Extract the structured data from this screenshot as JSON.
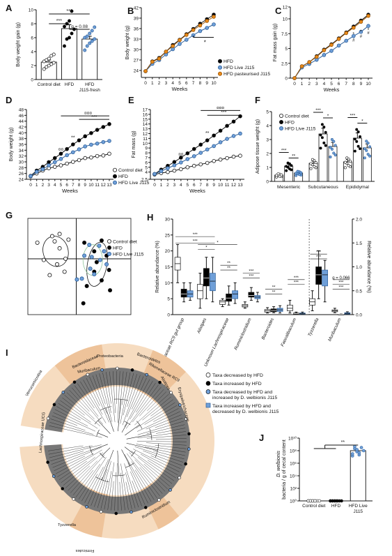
{
  "colors": {
    "control": "#ffffff",
    "hfd": "#000000",
    "live": "#6f9fd8",
    "past": "#e88a1a",
    "wedge": "#f6dcc0",
    "wedgeDark": "#eec39a",
    "grey": "#555555"
  },
  "panels": {
    "A": "A",
    "B": "B",
    "C": "C",
    "D": "D",
    "E": "E",
    "F": "F",
    "G": "G",
    "H": "H",
    "I": "I",
    "J": "J"
  },
  "chart_data": [
    {
      "panel": "A",
      "type": "bar",
      "ylabel": "Body weight gain (g)",
      "ylim": [
        0,
        10
      ],
      "yticks": [
        0,
        2,
        4,
        6,
        8,
        10
      ],
      "categories": [
        "Control diet",
        "HFD",
        "HFD J115-fresh"
      ],
      "values": [
        2.5,
        7.3,
        5.8
      ],
      "errors": [
        0.3,
        0.55,
        0.4
      ],
      "points": [
        [
          1.5,
          1.8,
          2.0,
          2.2,
          2.4,
          2.6,
          2.8,
          3.0,
          3.4,
          3.6
        ],
        [
          4.8,
          5.8,
          6.0,
          6.6,
          7.2,
          7.6,
          8.0,
          8.4,
          9.8
        ],
        [
          4.2,
          4.8,
          5.2,
          5.5,
          5.8,
          6.0,
          6.2,
          6.6,
          7.0,
          7.5
        ]
      ],
      "annotations": [
        {
          "text": "***",
          "pair": [
            0,
            2
          ]
        },
        {
          "text": "***",
          "pair": [
            0,
            1
          ]
        },
        {
          "text": "q = 0.08",
          "pair": [
            1,
            2
          ]
        }
      ]
    },
    {
      "panel": "B",
      "type": "line",
      "ylabel": "Body weight (g)",
      "xlabel": "Weeks",
      "ylim": [
        22,
        42
      ],
      "yticks": [
        24,
        27,
        30,
        33,
        36,
        39,
        42
      ],
      "x": [
        0,
        1,
        2,
        3,
        4,
        5,
        6,
        7,
        8,
        9,
        10
      ],
      "series": [
        {
          "name": "HFD",
          "values": [
            23.8,
            26.6,
            27.6,
            29.4,
            31.3,
            32.8,
            34.4,
            35.9,
            37.4,
            38.7,
            40.0
          ]
        },
        {
          "name": "HFD Live J115",
          "values": [
            23.8,
            25.9,
            27.0,
            28.6,
            30.1,
            31.6,
            32.8,
            34.1,
            35.3,
            36.2,
            37.2
          ]
        },
        {
          "name": "HFD pasteurised J115",
          "values": [
            23.8,
            26.5,
            27.4,
            29.4,
            31.0,
            32.7,
            34.2,
            35.6,
            36.9,
            38.2,
            39.4
          ]
        }
      ],
      "annotations": [
        "*"
      ]
    },
    {
      "panel": "C",
      "type": "line",
      "ylabel": "Fat mass gain (g)",
      "xlabel": "Weeks",
      "ylim": [
        0,
        12
      ],
      "yticks": [
        0,
        2.5,
        5,
        7.5,
        10,
        12
      ],
      "x": [
        0,
        1,
        2,
        3,
        4,
        5,
        6,
        7,
        8,
        9,
        10
      ],
      "series": [
        {
          "name": "HFD",
          "values": [
            0,
            2.0,
            2.7,
            3.7,
            4.8,
            5.7,
            6.7,
            7.7,
            8.7,
            9.7,
            10.7
          ]
        },
        {
          "name": "HFD Live J115",
          "values": [
            0,
            1.8,
            2.4,
            3.1,
            3.9,
            4.6,
            5.5,
            6.3,
            7.1,
            7.8,
            8.8
          ]
        },
        {
          "name": "HFD pasteurised J115",
          "values": [
            0,
            2.0,
            2.7,
            3.6,
            4.7,
            5.6,
            6.6,
            7.6,
            8.5,
            9.5,
            10.5
          ]
        }
      ],
      "annotations": [
        "*",
        "#",
        "*",
        "#",
        "*",
        "#"
      ]
    },
    {
      "panel": "D",
      "type": "line",
      "ylabel": "Body weight (g)",
      "xlabel": "Weeks",
      "ylim": [
        24,
        48
      ],
      "yticks": [
        24,
        26,
        28,
        30,
        32,
        34,
        36,
        38,
        40,
        42,
        44,
        46,
        48
      ],
      "x": [
        0,
        1,
        2,
        3,
        4,
        5,
        6,
        7,
        8,
        9,
        10,
        11,
        12,
        13
      ],
      "series": [
        {
          "name": "Control diet",
          "values": [
            25.0,
            26.0,
            27.0,
            27.8,
            28.3,
            28.8,
            29.4,
            30.0,
            30.6,
            31.3,
            31.5,
            32.0,
            32.2,
            32.8
          ]
        },
        {
          "name": "HFD",
          "values": [
            25.2,
            27.0,
            28.3,
            29.9,
            31.3,
            32.8,
            34.4,
            36.0,
            37.4,
            38.8,
            39.9,
            41.0,
            42.0,
            43.0
          ]
        },
        {
          "name": "HFD Live J115",
          "values": [
            25.1,
            26.6,
            27.5,
            28.8,
            29.9,
            31.0,
            32.3,
            33.3,
            34.3,
            35.3,
            35.9,
            36.3,
            36.8,
            37.2
          ]
        }
      ],
      "annotations": [
        "¤¤",
        "**",
        "***",
        "¤¤¤"
      ]
    },
    {
      "panel": "E",
      "type": "line",
      "ylabel": "Fat mass (g)",
      "xlabel": "Weeks",
      "ylim": [
        2.5,
        17
      ],
      "yticks": [
        2.5,
        4,
        5,
        6,
        7,
        8,
        9,
        10,
        11,
        12,
        13,
        14,
        15,
        16,
        17
      ],
      "x": [
        0,
        1,
        2,
        3,
        4,
        5,
        6,
        7,
        8,
        9,
        10,
        11,
        12,
        13
      ],
      "series": [
        {
          "name": "Control diet",
          "values": [
            3.5,
            3.8,
            4.0,
            4.3,
            4.6,
            5.0,
            5.3,
            5.6,
            5.9,
            6.3,
            6.6,
            6.9,
            7.2,
            7.4
          ]
        },
        {
          "name": "HFD",
          "values": [
            3.6,
            4.5,
            5.3,
            6.1,
            7.0,
            7.9,
            8.8,
            9.7,
            10.6,
            11.6,
            12.6,
            13.6,
            14.5,
            15.6
          ]
        },
        {
          "name": "HFD Live J115",
          "values": [
            3.6,
            4.2,
            4.8,
            5.4,
            6.0,
            6.7,
            7.3,
            8.0,
            8.7,
            9.4,
            10.2,
            10.9,
            11.5,
            12.0
          ]
        }
      ],
      "annotations": [
        "¤¤",
        "**",
        "***",
        "¤¤¤"
      ]
    },
    {
      "panel": "F",
      "type": "bar",
      "ylabel": "Adipose tissue weight (g)",
      "ylim": [
        0,
        5
      ],
      "yticks": [
        0,
        1,
        2,
        3,
        4,
        5
      ],
      "categories": [
        "Mesenteric",
        "Subcutaneous",
        "Epididymal"
      ],
      "series": [
        {
          "name": "Control diet",
          "values": [
            0.45,
            1.3,
            1.4
          ]
        },
        {
          "name": "HFD",
          "values": [
            1.1,
            3.4,
            3.1
          ]
        },
        {
          "name": "HFD Live J115",
          "values": [
            0.6,
            2.5,
            2.4
          ]
        }
      ],
      "annotations": [
        "***",
        "**",
        "***",
        "***",
        "*",
        "***",
        "***",
        "*"
      ]
    },
    {
      "panel": "G",
      "type": "scatter",
      "legend": [
        "Control diet",
        "HFD",
        "HFD Live J115"
      ],
      "series": [
        {
          "name": "Control diet",
          "points": [
            [
              -0.85,
              0.55
            ],
            [
              -0.55,
              0.7
            ],
            [
              -0.4,
              0.75
            ],
            [
              -0.5,
              0.58
            ],
            [
              -0.4,
              0.42
            ],
            [
              -0.72,
              0.15
            ],
            [
              -0.45,
              0.05
            ],
            [
              -0.28,
              0.18
            ],
            [
              -0.3,
              -0.12
            ],
            [
              -0.6,
              -0.2
            ],
            [
              -0.22,
              0.62
            ]
          ]
        },
        {
          "name": "HFD",
          "points": [
            [
              0.1,
              0.55
            ],
            [
              0.45,
              0.6
            ],
            [
              0.3,
              0.35
            ],
            [
              0.55,
              0.25
            ],
            [
              0.35,
              0.1
            ],
            [
              0.6,
              -0.08
            ],
            [
              0.3,
              -0.12
            ],
            [
              0.45,
              -0.32
            ],
            [
              0.15,
              -0.45
            ],
            [
              0.62,
              -0.55
            ],
            [
              0.08,
              -0.85
            ]
          ]
        },
        {
          "name": "HFD Live J115",
          "points": [
            [
              0.2,
              0.5
            ],
            [
              0.4,
              0.48
            ],
            [
              0.5,
              0.35
            ],
            [
              0.25,
              0.22
            ],
            [
              0.1,
              0.25
            ],
            [
              0.55,
              0.05
            ],
            [
              0.22,
              -0.05
            ],
            [
              0.3,
              -0.18
            ],
            [
              -0.05,
              -0.3
            ],
            [
              0.05,
              -0.28
            ],
            [
              0.42,
              0.15
            ]
          ]
        }
      ]
    },
    {
      "panel": "H",
      "type": "box",
      "ylabel": "Relative abundance (%)",
      "y2label": "Relative abundance (%)",
      "ylim": [
        0,
        30
      ],
      "yticks": [
        0,
        5,
        10,
        15,
        20,
        25,
        30
      ],
      "y2ticks": [
        0,
        0.5,
        1.0,
        1.5,
        2.0
      ],
      "categories": [
        "Rikenellaceae RC9 gut group",
        "Alistipes",
        "Unknown Lachnospiraceae",
        "Ruminiclostridium",
        "Bacteroides",
        "Faecalibaculum",
        "Tyzzerella",
        "Muribaculum"
      ],
      "series": [
        {
          "name": "Control diet",
          "boxes": [
            [
              10,
              14,
              16,
              18,
              22
            ],
            [
              2,
              5,
              7.5,
              9.5,
              13
            ],
            [
              2.5,
              3.2,
              4,
              4.5,
              5
            ],
            [
              2,
              2.4,
              2.8,
              3.2,
              4
            ],
            [
              0.5,
              0.8,
              1.2,
              1.6,
              2.2
            ],
            [
              0.5,
              1.2,
              2,
              3,
              4.5
            ],
            [
              1.2,
              3,
              4,
              5,
              7.5
            ],
            [
              0.6,
              0.9,
              1.2,
              1.5,
              2
            ]
          ]
        },
        {
          "name": "HFD",
          "boxes": [
            [
              4,
              5.5,
              6.5,
              8,
              10
            ],
            [
              5,
              9,
              11.5,
              14.5,
              18
            ],
            [
              3,
              4.2,
              5.2,
              6.5,
              9
            ],
            [
              4.5,
              5.5,
              6,
              7,
              8.5
            ],
            [
              0.6,
              0.9,
              1.3,
              1.8,
              2.5
            ],
            [
              0.1,
              0.2,
              0.3,
              0.5,
              0.8
            ],
            [
              5,
              9.5,
              12.5,
              15,
              20
            ],
            [
              0.02,
              0.05,
              0.08,
              0.12,
              0.2
            ]
          ]
        },
        {
          "name": "HFD Live J115",
          "boxes": [
            [
              4.5,
              5.5,
              6.5,
              7.5,
              10
            ],
            [
              4,
              7.5,
              10.5,
              13,
              18
            ],
            [
              3.5,
              5,
              6.5,
              7.5,
              10
            ],
            [
              4,
              5,
              5.5,
              6,
              7
            ],
            [
              0.5,
              1,
              1.5,
              2,
              2.8
            ],
            [
              0.1,
              0.2,
              0.3,
              0.5,
              0.8
            ],
            [
              4,
              9,
              12.5,
              14,
              17
            ],
            [
              0.1,
              0.2,
              0.4,
              0.6,
              0.9
            ]
          ]
        }
      ],
      "annotations": [
        "***",
        "***",
        "*",
        "*",
        "**",
        "**",
        "***",
        "***",
        "**",
        "**",
        "***",
        "***",
        "***",
        "***",
        "q = 0.066",
        "***",
        "***"
      ]
    },
    {
      "panel": "I",
      "type": "diagram",
      "labels": [
        "Proteobacteria",
        "Bacteroidaceae",
        "Bacteroidetes",
        "Muribaculum",
        "Rikenellaceae RC9",
        "Alistipes",
        "Verrucomicrobia",
        "Erysipelotrichaceae",
        "Lachnospiraceae UCG",
        "Ruminiclostridium",
        "Tyzzerella",
        "Firmicutes"
      ],
      "legend": [
        "Taxa decreased by HFD",
        "Taxa increased by HFD",
        "Taxa decreased by HFD and increased by D. welbionis J115",
        "Taxa increased by HFD and decreased by D. welbionis J115"
      ]
    },
    {
      "panel": "J",
      "type": "bar",
      "ylabel": "D. welbionis bacteria / g of cecal content",
      "yscale": "log",
      "ylim": [
        1,
        10000000000
      ],
      "yticks": [
        "10⁰",
        "10²",
        "10⁴",
        "10⁶",
        "10⁸",
        "10¹⁰"
      ],
      "categories": [
        "Control diet",
        "HFD",
        "HFD Live J115"
      ],
      "values": [
        1,
        1,
        100000000
      ],
      "annotations": [
        "**"
      ]
    }
  ],
  "legends": {
    "B": [
      "HFD",
      "HFD Live J115",
      "HFD pasteurised J115"
    ],
    "D": [
      "Control diet",
      "HFD",
      "HFD Live J115"
    ],
    "F": [
      "Control diet",
      "HFD",
      "HFD Live J115"
    ],
    "G": [
      "Control diet",
      "HFD",
      "HFD Live J115"
    ],
    "I": [
      "Taxa decreased by HFD",
      "Taxa increased by HFD",
      "Taxa decreased by HFD and increased by D. welbionis J115",
      "Taxa increased by HFD and decreased by D. welbionis J115"
    ]
  }
}
